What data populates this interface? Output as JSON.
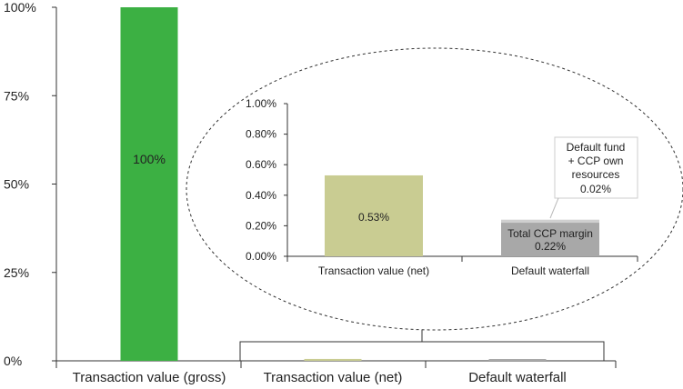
{
  "colors": {
    "gross": "#3cb043",
    "net": "#c9cc92",
    "margin": "#a8a8a8",
    "fund": "#cfcfcf",
    "axis": "#333333"
  },
  "chart_data": [
    {
      "type": "bar",
      "categories": [
        "Transaction value (gross)",
        "Transaction value (net)",
        "Default waterfall"
      ],
      "series": [
        {
          "values": [
            100,
            0.53,
            0.24
          ]
        }
      ],
      "ylim": [
        0,
        100
      ],
      "yticks": [
        "0%",
        "25%",
        "50%",
        "75%",
        "100%"
      ],
      "data_labels": [
        "100%"
      ],
      "grid": false
    },
    {
      "type": "bar",
      "stacked": true,
      "categories": [
        "Transaction value (net)",
        "Default waterfall"
      ],
      "series": [
        {
          "values": [
            0.53,
            0.22
          ]
        },
        {
          "values": [
            0,
            0.02
          ]
        }
      ],
      "ylim": [
        0,
        1.0
      ],
      "yticks": [
        "0.00%",
        "0.20%",
        "0.40%",
        "0.60%",
        "0.80%",
        "1.00%"
      ],
      "data_labels": {
        "net": "0.53%",
        "margin_line1": "Total CCP margin",
        "margin_line2": "0.22%"
      },
      "callout": {
        "line1": "Default fund",
        "line2": "+ CCP own",
        "line3": "resources",
        "line4": "0.02%"
      },
      "grid": false
    }
  ]
}
